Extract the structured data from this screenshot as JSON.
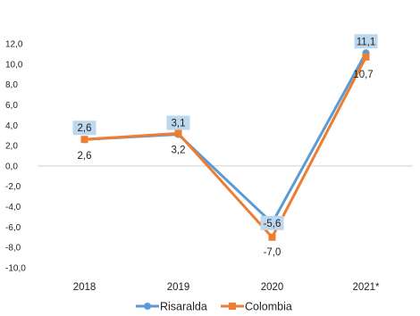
{
  "chart_data": {
    "type": "line",
    "categories": [
      "2018",
      "2019",
      "2020",
      "2021*"
    ],
    "series": [
      {
        "name": "Risaralda",
        "values": [
          2.6,
          3.1,
          -5.6,
          11.1
        ],
        "labels": [
          "2,6",
          "3,1",
          "-5,6",
          "11,1"
        ],
        "color": "#5B9BD5"
      },
      {
        "name": "Colombia",
        "values": [
          2.6,
          3.2,
          -7.0,
          10.7
        ],
        "labels": [
          "2,6",
          "3,2",
          "-7,0",
          "10,7"
        ],
        "color": "#ED7D31"
      }
    ],
    "ylim": [
      -10,
      12
    ],
    "yticks": [
      12,
      10,
      8,
      6,
      4,
      2,
      0,
      -2,
      -4,
      -6,
      -8,
      -10
    ],
    "ytick_labels": [
      "12,0",
      "10,0",
      "8,0",
      "6,0",
      "4,0",
      "2,0",
      "0,0",
      "-2,0",
      "-4,0",
      "-6,0",
      "-8,0",
      "-10,0"
    ],
    "zero_line": true,
    "grid": false,
    "legend_position": "bottom",
    "label_box_color": "#BDD7EE"
  }
}
